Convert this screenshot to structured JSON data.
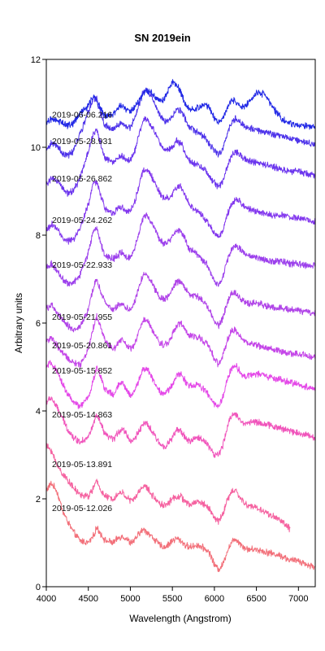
{
  "chart_data": {
    "type": "line",
    "title": "SN 2019ein",
    "xlabel": "Wavelength (Angstrom)",
    "ylabel": "Arbitrary units",
    "xlim": [
      4000,
      7200
    ],
    "ylim": [
      0,
      12
    ],
    "xticks": [
      4000,
      4500,
      5000,
      5500,
      6000,
      6500,
      7000
    ],
    "yticks": [
      0,
      2,
      4,
      6,
      8,
      10,
      12
    ],
    "grid": false,
    "legend": "none",
    "series": [
      {
        "name": "2019-05-12.026",
        "color": "#f2707a",
        "label_y": 1.8,
        "x": [
          4000,
          4060,
          4120,
          4200,
          4250,
          4320,
          4400,
          4500,
          4560,
          4600,
          4650,
          4700,
          4800,
          4850,
          4900,
          4950,
          5000,
          5050,
          5100,
          5150,
          5200,
          5250,
          5300,
          5350,
          5400,
          5450,
          5500,
          5550,
          5600,
          5650,
          5700,
          5800,
          5900,
          5950,
          6000,
          6050,
          6100,
          6150,
          6200,
          6250,
          6300,
          6350,
          6400,
          6500,
          6600,
          6700,
          6800,
          6900,
          7000,
          7100,
          7200
        ],
        "y": [
          2.2,
          2.35,
          2.2,
          1.7,
          1.5,
          1.25,
          1.05,
          1.0,
          1.15,
          1.35,
          1.2,
          1.05,
          1.0,
          1.1,
          1.15,
          1.1,
          1.0,
          1.05,
          1.2,
          1.3,
          1.25,
          1.15,
          1.05,
          0.95,
          0.9,
          0.95,
          1.05,
          1.1,
          1.05,
          0.95,
          0.9,
          0.95,
          0.85,
          0.75,
          0.5,
          0.4,
          0.5,
          0.8,
          1.0,
          1.1,
          1.0,
          0.9,
          0.85,
          0.85,
          0.8,
          0.75,
          0.7,
          0.6,
          0.6,
          0.5,
          0.45
        ]
      },
      {
        "name": "2019-05-13.891",
        "color": "#f562a0",
        "label_y": 2.8,
        "x": [
          4000,
          4060,
          4120,
          4200,
          4250,
          4320,
          4400,
          4500,
          4560,
          4600,
          4650,
          4700,
          4800,
          4850,
          4900,
          4950,
          5000,
          5050,
          5100,
          5150,
          5200,
          5250,
          5300,
          5350,
          5400,
          5450,
          5500,
          5550,
          5600,
          5650,
          5700,
          5800,
          5900,
          5950,
          6000,
          6050,
          6100,
          6150,
          6200,
          6250,
          6300,
          6350,
          6400,
          6500,
          6600,
          6700,
          6800,
          6900
        ],
        "y": [
          3.2,
          3.1,
          2.8,
          2.55,
          2.45,
          2.25,
          2.1,
          2.05,
          2.25,
          2.4,
          2.2,
          2.05,
          2.0,
          2.1,
          2.15,
          2.05,
          1.95,
          2.0,
          2.15,
          2.3,
          2.25,
          2.1,
          2.0,
          1.9,
          1.85,
          1.9,
          2.0,
          2.05,
          2.05,
          1.95,
          1.85,
          1.95,
          1.85,
          1.75,
          1.55,
          1.5,
          1.65,
          1.95,
          2.15,
          2.2,
          2.05,
          1.9,
          1.85,
          1.8,
          1.7,
          1.6,
          1.5,
          1.3
        ]
      },
      {
        "name": "2019-05-14.863",
        "color": "#f054bb",
        "label_y": 3.93,
        "x": [
          4000,
          4060,
          4120,
          4200,
          4250,
          4320,
          4400,
          4500,
          4560,
          4600,
          4650,
          4700,
          4800,
          4850,
          4900,
          4950,
          5000,
          5050,
          5100,
          5150,
          5200,
          5250,
          5300,
          5350,
          5400,
          5450,
          5500,
          5550,
          5600,
          5650,
          5700,
          5800,
          5900,
          5950,
          6000,
          6050,
          6100,
          6150,
          6200,
          6250,
          6300,
          6350,
          6400,
          6500,
          6600,
          6700,
          6800,
          6900,
          7000,
          7100,
          7200
        ],
        "y": [
          4.2,
          4.3,
          4.1,
          3.8,
          3.6,
          3.4,
          3.3,
          3.4,
          3.7,
          3.9,
          3.7,
          3.45,
          3.35,
          3.5,
          3.6,
          3.5,
          3.3,
          3.35,
          3.55,
          3.7,
          3.7,
          3.55,
          3.4,
          3.25,
          3.2,
          3.25,
          3.4,
          3.55,
          3.55,
          3.4,
          3.3,
          3.4,
          3.3,
          3.15,
          3.0,
          3.0,
          3.2,
          3.6,
          3.9,
          3.95,
          3.8,
          3.7,
          3.75,
          3.75,
          3.7,
          3.65,
          3.6,
          3.55,
          3.5,
          3.45,
          3.4
        ]
      },
      {
        "name": "2019-05-15.852",
        "color": "#e449e8",
        "label_y": 4.93,
        "x": [
          4000,
          4060,
          4120,
          4200,
          4250,
          4320,
          4400,
          4500,
          4560,
          4600,
          4650,
          4700,
          4800,
          4850,
          4900,
          4950,
          5000,
          5050,
          5100,
          5150,
          5200,
          5250,
          5300,
          5350,
          5400,
          5450,
          5500,
          5550,
          5600,
          5650,
          5700,
          5800,
          5900,
          5950,
          6000,
          6050,
          6100,
          6150,
          6200,
          6250,
          6300,
          6350,
          6400,
          6500,
          6600,
          6700,
          6800,
          6900,
          7000,
          7100,
          7200
        ],
        "y": [
          5.0,
          5.1,
          4.9,
          4.6,
          4.4,
          4.2,
          4.1,
          4.3,
          4.7,
          5.0,
          4.75,
          4.5,
          4.35,
          4.55,
          4.65,
          4.5,
          4.35,
          4.45,
          4.7,
          4.95,
          4.95,
          4.8,
          4.6,
          4.45,
          4.4,
          4.45,
          4.6,
          4.8,
          4.85,
          4.7,
          4.55,
          4.6,
          4.45,
          4.3,
          4.15,
          4.1,
          4.3,
          4.7,
          4.95,
          5.05,
          4.9,
          4.8,
          4.8,
          4.85,
          4.8,
          4.75,
          4.7,
          4.65,
          4.6,
          4.55,
          4.5
        ]
      },
      {
        "name": "2019-05-20.861",
        "color": "#c445e8",
        "label_y": 5.5,
        "x": [
          4000,
          4060,
          4120,
          4200,
          4250,
          4320,
          4400,
          4500,
          4560,
          4600,
          4650,
          4700,
          4800,
          4850,
          4900,
          4950,
          5000,
          5050,
          5100,
          5150,
          5200,
          5250,
          5300,
          5350,
          5400,
          5450,
          5500,
          5550,
          5600,
          5650,
          5700,
          5800,
          5900,
          5950,
          6000,
          6050,
          6100,
          6150,
          6200,
          6250,
          6300,
          6350,
          6400,
          6500,
          6600,
          6700,
          6800,
          6900,
          7000,
          7100,
          7200
        ],
        "y": [
          5.6,
          5.65,
          5.5,
          5.3,
          5.2,
          5.1,
          5.05,
          5.4,
          5.9,
          6.15,
          5.9,
          5.6,
          5.4,
          5.55,
          5.65,
          5.5,
          5.4,
          5.5,
          5.8,
          6.05,
          6.05,
          5.9,
          5.7,
          5.55,
          5.5,
          5.55,
          5.75,
          5.95,
          6.0,
          5.85,
          5.7,
          5.7,
          5.55,
          5.4,
          5.2,
          5.05,
          5.25,
          5.6,
          5.8,
          5.85,
          5.7,
          5.6,
          5.55,
          5.5,
          5.45,
          5.4,
          5.35,
          5.3,
          5.3,
          5.25,
          5.2
        ]
      },
      {
        "name": "2019-05-21.955",
        "color": "#b044e8",
        "label_y": 6.15,
        "x": [
          4000,
          4060,
          4120,
          4200,
          4250,
          4320,
          4400,
          4500,
          4560,
          4600,
          4650,
          4700,
          4800,
          4850,
          4900,
          4950,
          5000,
          5050,
          5100,
          5150,
          5200,
          5250,
          5300,
          5350,
          5400,
          5450,
          5500,
          5550,
          5600,
          5650,
          5700,
          5800,
          5900,
          5950,
          6000,
          6050,
          6100,
          6150,
          6200,
          6250,
          6300,
          6350,
          6400,
          6500,
          6600,
          6700,
          6800,
          6900,
          7000,
          7100,
          7200
        ],
        "y": [
          6.35,
          6.4,
          6.25,
          6.05,
          5.95,
          5.85,
          5.9,
          6.3,
          6.8,
          7.0,
          6.7,
          6.45,
          6.3,
          6.4,
          6.45,
          6.35,
          6.3,
          6.45,
          6.8,
          7.1,
          7.1,
          6.95,
          6.75,
          6.6,
          6.55,
          6.6,
          6.75,
          6.95,
          6.95,
          6.8,
          6.65,
          6.6,
          6.45,
          6.25,
          6.05,
          5.95,
          6.1,
          6.45,
          6.65,
          6.7,
          6.6,
          6.5,
          6.45,
          6.45,
          6.4,
          6.35,
          6.35,
          6.3,
          6.3,
          6.25,
          6.2
        ]
      },
      {
        "name": "2019-05-22.933",
        "color": "#9c40ec",
        "label_y": 7.33,
        "x": [
          4000,
          4060,
          4120,
          4200,
          4250,
          4320,
          4400,
          4500,
          4560,
          4600,
          4650,
          4700,
          4800,
          4850,
          4900,
          4950,
          5000,
          5050,
          5100,
          5150,
          5200,
          5250,
          5300,
          5350,
          5400,
          5450,
          5500,
          5550,
          5600,
          5650,
          5700,
          5800,
          5900,
          5950,
          6000,
          6050,
          6100,
          6150,
          6200,
          6250,
          6300,
          6350,
          6400,
          6500,
          6600,
          6700,
          6800,
          6900,
          7000,
          7100,
          7200
        ],
        "y": [
          7.25,
          7.35,
          7.2,
          7.0,
          6.9,
          6.9,
          7.1,
          7.6,
          8.1,
          8.15,
          7.8,
          7.55,
          7.45,
          7.55,
          7.6,
          7.5,
          7.5,
          7.7,
          8.05,
          8.4,
          8.45,
          8.3,
          8.1,
          7.9,
          7.8,
          7.85,
          7.95,
          8.1,
          8.1,
          7.9,
          7.7,
          7.55,
          7.35,
          7.15,
          6.95,
          6.85,
          7.05,
          7.4,
          7.65,
          7.75,
          7.7,
          7.6,
          7.55,
          7.5,
          7.45,
          7.4,
          7.4,
          7.35,
          7.35,
          7.3,
          7.3
        ]
      },
      {
        "name": "2019-05-24.262",
        "color": "#8338ee",
        "label_y": 8.35,
        "x": [
          4000,
          4060,
          4120,
          4200,
          4250,
          4320,
          4400,
          4500,
          4560,
          4600,
          4650,
          4700,
          4800,
          4850,
          4900,
          4950,
          5000,
          5050,
          5100,
          5150,
          5200,
          5250,
          5300,
          5350,
          5400,
          5450,
          5500,
          5550,
          5600,
          5650,
          5700,
          5800,
          5900,
          5950,
          6000,
          6050,
          6100,
          6150,
          6200,
          6250,
          6300,
          6350,
          6400,
          6500,
          6600,
          6700,
          6800,
          6900,
          7000,
          7100,
          7200
        ],
        "y": [
          8.1,
          8.25,
          8.15,
          7.95,
          7.85,
          7.9,
          8.15,
          8.7,
          9.2,
          9.2,
          8.9,
          8.6,
          8.5,
          8.6,
          8.65,
          8.55,
          8.55,
          8.75,
          9.1,
          9.45,
          9.5,
          9.35,
          9.15,
          8.95,
          8.85,
          8.85,
          8.95,
          9.1,
          9.1,
          8.9,
          8.7,
          8.55,
          8.35,
          8.2,
          8.05,
          7.95,
          8.1,
          8.45,
          8.7,
          8.8,
          8.75,
          8.65,
          8.6,
          8.55,
          8.5,
          8.45,
          8.45,
          8.4,
          8.4,
          8.35,
          8.3
        ]
      },
      {
        "name": "2019-05-26.862",
        "color": "#6b35ee",
        "label_y": 9.3,
        "x": [
          4000,
          4060,
          4120,
          4200,
          4250,
          4320,
          4400,
          4500,
          4560,
          4600,
          4650,
          4700,
          4800,
          4850,
          4900,
          4950,
          5000,
          5050,
          5100,
          5150,
          5200,
          5250,
          5300,
          5350,
          5400,
          5450,
          5500,
          5550,
          5600,
          5650,
          5700,
          5800,
          5900,
          5950,
          6000,
          6050,
          6100,
          6150,
          6200,
          6250,
          6300,
          6350,
          6400,
          6500,
          6600,
          6700,
          6800,
          6900,
          7000,
          7100,
          7200
        ],
        "y": [
          9.15,
          9.3,
          9.25,
          9.05,
          8.95,
          9.0,
          9.3,
          9.9,
          10.3,
          10.4,
          10.05,
          9.75,
          9.65,
          9.75,
          9.8,
          9.7,
          9.7,
          9.9,
          10.3,
          10.6,
          10.65,
          10.5,
          10.3,
          10.1,
          9.95,
          9.95,
          10.0,
          10.15,
          10.1,
          9.9,
          9.7,
          9.6,
          9.45,
          9.3,
          9.2,
          9.1,
          9.2,
          9.55,
          9.8,
          9.9,
          9.85,
          9.75,
          9.7,
          9.65,
          9.6,
          9.55,
          9.5,
          9.45,
          9.45,
          9.4,
          9.35
        ]
      },
      {
        "name": "2019-05-28.931",
        "color": "#4e34ea",
        "label_y": 10.15,
        "x": [
          4000,
          4060,
          4120,
          4200,
          4250,
          4320,
          4400,
          4500,
          4560,
          4600,
          4650,
          4700,
          4800,
          4850,
          4900,
          4950,
          5000,
          5050,
          5100,
          5150,
          5200,
          5250,
          5300,
          5350,
          5400,
          5450,
          5500,
          5550,
          5600,
          5650,
          5700,
          5800,
          5900,
          5950,
          6000,
          6050,
          6100,
          6150,
          6200,
          6250,
          6300,
          6350,
          6400,
          6500,
          6600,
          6700,
          6800,
          6900,
          7000,
          7100,
          7200
        ],
        "y": [
          9.95,
          10.1,
          10.05,
          9.85,
          9.8,
          9.9,
          10.3,
          10.8,
          11.1,
          11.1,
          10.75,
          10.5,
          10.4,
          10.5,
          10.55,
          10.45,
          10.45,
          10.65,
          10.95,
          11.25,
          11.3,
          11.15,
          10.95,
          10.75,
          10.6,
          10.6,
          10.7,
          10.85,
          10.85,
          10.65,
          10.45,
          10.35,
          10.2,
          10.05,
          9.95,
          9.85,
          9.95,
          10.3,
          10.55,
          10.65,
          10.6,
          10.5,
          10.45,
          10.4,
          10.35,
          10.3,
          10.25,
          10.2,
          10.15,
          10.1,
          10.05
        ]
      },
      {
        "name": "2019-06-06.216",
        "color": "#2229e6",
        "label_y": 10.75,
        "x": [
          4000,
          4060,
          4120,
          4200,
          4250,
          4320,
          4400,
          4500,
          4560,
          4600,
          4650,
          4700,
          4800,
          4850,
          4900,
          4950,
          5000,
          5050,
          5100,
          5150,
          5200,
          5250,
          5300,
          5350,
          5400,
          5450,
          5500,
          5550,
          5600,
          5650,
          5700,
          5800,
          5900,
          5950,
          6000,
          6050,
          6100,
          6150,
          6200,
          6250,
          6300,
          6350,
          6400,
          6500,
          6600,
          6700,
          6800,
          6900,
          7000,
          7100,
          7200
        ],
        "y": [
          10.55,
          10.65,
          10.6,
          10.55,
          10.5,
          10.55,
          10.75,
          10.95,
          11.15,
          11.05,
          10.85,
          10.7,
          10.75,
          10.9,
          10.95,
          10.85,
          10.8,
          10.9,
          11.05,
          11.2,
          11.3,
          11.25,
          11.15,
          11.05,
          11.1,
          11.3,
          11.5,
          11.45,
          11.25,
          11.0,
          10.85,
          10.9,
          11.0,
          10.85,
          10.65,
          10.55,
          10.65,
          10.9,
          11.05,
          11.05,
          10.95,
          10.9,
          11.0,
          11.25,
          11.2,
          10.9,
          10.65,
          10.55,
          10.5,
          10.5,
          10.45
        ]
      }
    ]
  }
}
